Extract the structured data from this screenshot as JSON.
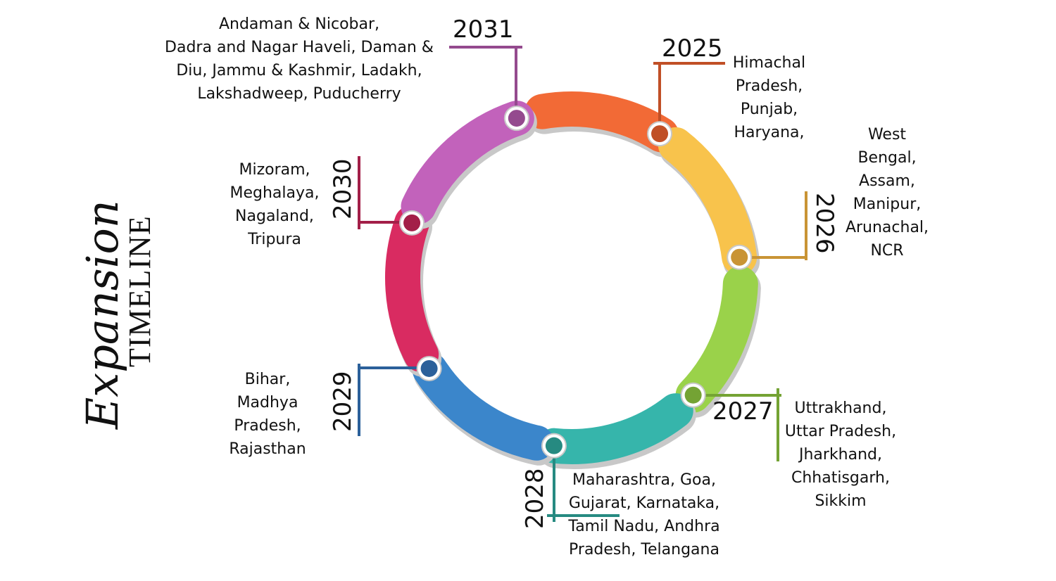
{
  "title": {
    "script": "Expansion",
    "caps": "TIMELINE"
  },
  "milestones": [
    {
      "year": "2025",
      "regions": "Himachal\nPradesh,\nPunjab,\nHaryana,",
      "color": "#f26a36",
      "dot": "#c04f26"
    },
    {
      "year": "2026",
      "regions": "West\nBengal,\nAssam,\nManipur,\nArunachal,\nNCR",
      "color": "#f8c34c",
      "dot": "#c99435"
    },
    {
      "year": "2027",
      "regions": "Uttrakhand,\nUttar Pradesh,\nJharkhand,\nChhatisgarh,\nSikkim",
      "color": "#9ad24a",
      "dot": "#74a334"
    },
    {
      "year": "2028",
      "regions": "Maharashtra, Goa,\nGujarat,  Karnataka,\nTamil Nadu, Andhra\nPradesh, Telangana",
      "color": "#36b5ab",
      "dot": "#268a81"
    },
    {
      "year": "2029",
      "regions": "Bihar,\nMadhya\nPradesh,\nRajasthan",
      "color": "#3b86cb",
      "dot": "#2b609a"
    },
    {
      "year": "2030",
      "regions": "Mizoram,\nMeghalaya,\nNagaland,\nTripura",
      "color": "#d92b61",
      "dot": "#a31f48"
    },
    {
      "year": "2031",
      "regions": "Andaman & Nicobar,\nDadra and Nagar Haveli, Daman &\nDiu, Jammu & Kashmir, Ladakh,\nLakshadweep, Puducherry",
      "color": "#c262bb",
      "dot": "#944a8e"
    }
  ]
}
